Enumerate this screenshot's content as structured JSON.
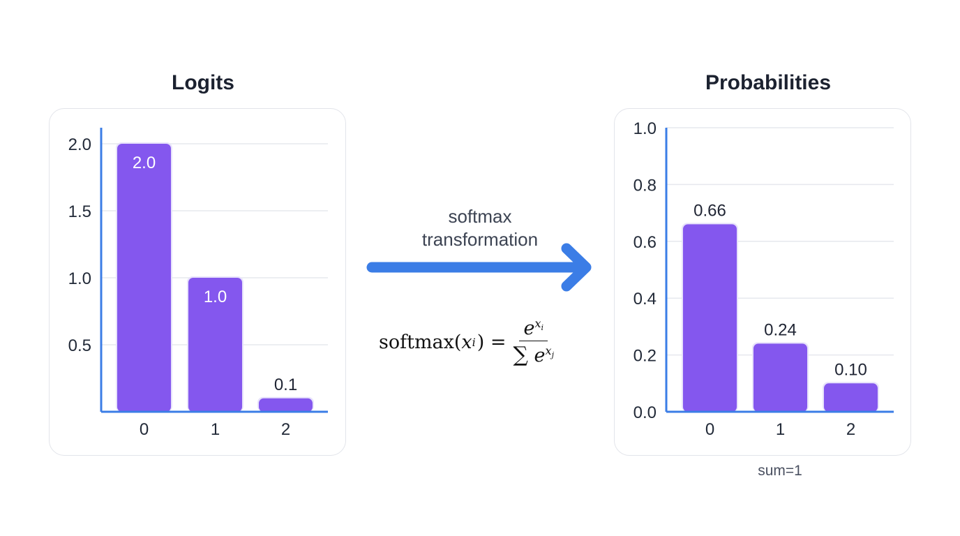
{
  "arrow": {
    "label_line1": "softmax",
    "label_line2": "transformation",
    "color": "#3b7de6"
  },
  "formula": {
    "lhs": "softmax(",
    "lhs_var": "x",
    "lhs_sub": "i",
    "lhs_close": ") =",
    "num_base": "e",
    "num_sup": "x",
    "num_sup_sub": "i",
    "den_sum": "∑",
    "den_base": "e",
    "den_sup": "x",
    "den_sup_sub": "j"
  },
  "note": "sum=1",
  "colors": {
    "bar": "#8457ee",
    "axis": "#3b7de6",
    "grid": "#e6e8ee"
  },
  "chart_data": [
    {
      "type": "bar",
      "title": "Logits",
      "categories": [
        "0",
        "1",
        "2"
      ],
      "values": [
        2.0,
        1.0,
        0.1
      ],
      "data_labels": [
        "2.0",
        "1.0",
        "0.1"
      ],
      "label_inside": [
        true,
        true,
        false
      ],
      "yticks": [
        "0.5",
        "1.0",
        "1.5",
        "2.0"
      ],
      "ylim": [
        0,
        2.0
      ],
      "grid": true
    },
    {
      "type": "bar",
      "title": "Probabilities",
      "categories": [
        "0",
        "1",
        "2"
      ],
      "values": [
        0.66,
        0.24,
        0.1
      ],
      "data_labels": [
        "0.66",
        "0.24",
        "0.10"
      ],
      "label_inside": [
        false,
        false,
        false
      ],
      "yticks": [
        "0.0",
        "0.2",
        "0.4",
        "0.6",
        "0.8",
        "1.0"
      ],
      "ylim": [
        0,
        1.0
      ],
      "grid": true
    }
  ]
}
